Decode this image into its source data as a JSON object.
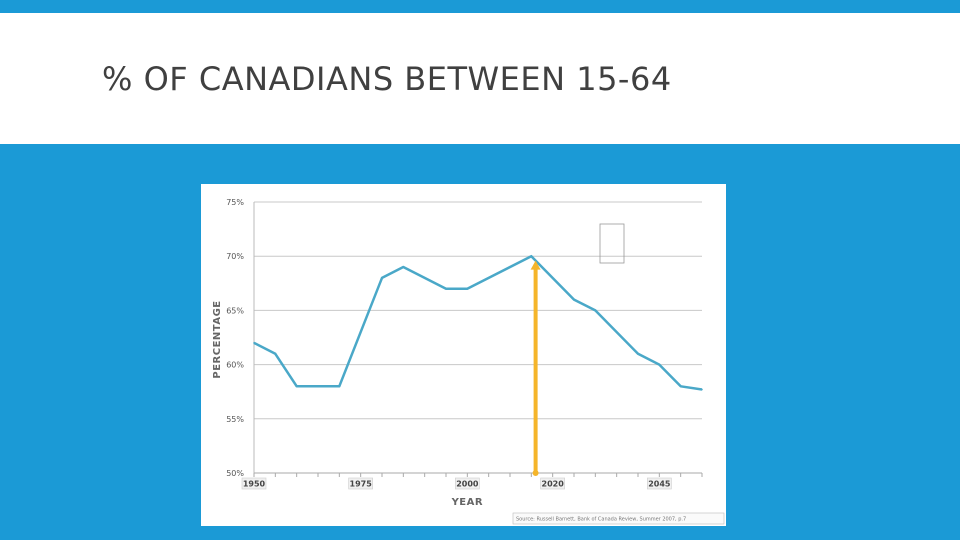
{
  "slide": {
    "title": "% OF CANADIANS BETWEEN 15-64",
    "colors": {
      "accent": "#1b9ad6",
      "line": "#4aa8c8",
      "arrow": "#f5b52a",
      "grid": "#c8c8c8"
    }
  },
  "chart_data": {
    "type": "line",
    "title": "",
    "xlabel": "YEAR",
    "ylabel": "PERCENTAGE",
    "ylim": [
      50,
      75
    ],
    "yticks": [
      50,
      55,
      60,
      65,
      70,
      75
    ],
    "ytick_labels": [
      "50%",
      "55%",
      "60%",
      "65%",
      "70%",
      "75%"
    ],
    "xlim": [
      1950,
      2055
    ],
    "xticks": [
      1950,
      1975,
      2000,
      2020,
      2045
    ],
    "xtick_labels": [
      "1950",
      "1975",
      "2000",
      "2020",
      "2045"
    ],
    "grid": true,
    "series": [
      {
        "x": [
          1950,
          1955,
          1960,
          1965,
          1970,
          1980,
          1985,
          1995,
          2000,
          2005,
          2015,
          2025,
          2030,
          2040,
          2045,
          2050,
          2055
        ],
        "values": [
          62,
          61,
          58,
          58,
          58,
          68,
          69,
          67,
          67,
          68,
          70,
          66,
          65,
          61,
          60,
          58,
          57.7
        ]
      }
    ],
    "annotations": [
      {
        "type": "arrow",
        "x": 2016,
        "y_from": 50,
        "y_to": 69.5,
        "color": "#f5b52a"
      }
    ],
    "source": "Source: Russell Barnett, Bank of Canada Review, Summer 2007, p.7"
  }
}
